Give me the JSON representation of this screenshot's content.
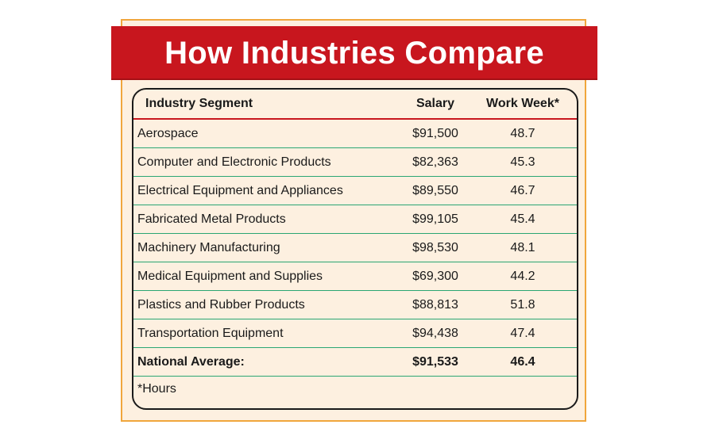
{
  "title": "How Industries Compare",
  "table": {
    "headers": {
      "segment": "Industry Segment",
      "salary": "Salary",
      "work_week": "Work Week*"
    },
    "rows": [
      {
        "segment": "Aerospace",
        "salary": "$91,500",
        "work_week": "48.7"
      },
      {
        "segment": "Computer and Electronic Products",
        "salary": "$82,363",
        "work_week": "45.3"
      },
      {
        "segment": "Electrical Equipment and Appliances",
        "salary": "$89,550",
        "work_week": "46.7"
      },
      {
        "segment": "Fabricated Metal Products",
        "salary": "$99,105",
        "work_week": "45.4"
      },
      {
        "segment": "Machinery Manufacturing",
        "salary": "$98,530",
        "work_week": "48.1"
      },
      {
        "segment": "Medical Equipment and Supplies",
        "salary": "$69,300",
        "work_week": "44.2"
      },
      {
        "segment": "Plastics and Rubber Products",
        "salary": "$88,813",
        "work_week": "51.8"
      },
      {
        "segment": "Transportation Equipment",
        "salary": "$94,438",
        "work_week": "47.4"
      }
    ],
    "total": {
      "segment": "National Average:",
      "salary": "$91,533",
      "work_week": "46.4"
    },
    "footnote": "*Hours"
  },
  "colors": {
    "banner": "#c8161e",
    "frame_border": "#f0a63c",
    "background": "#fdf0e0",
    "row_divider": "#2aa673",
    "header_divider": "#c8161e"
  }
}
